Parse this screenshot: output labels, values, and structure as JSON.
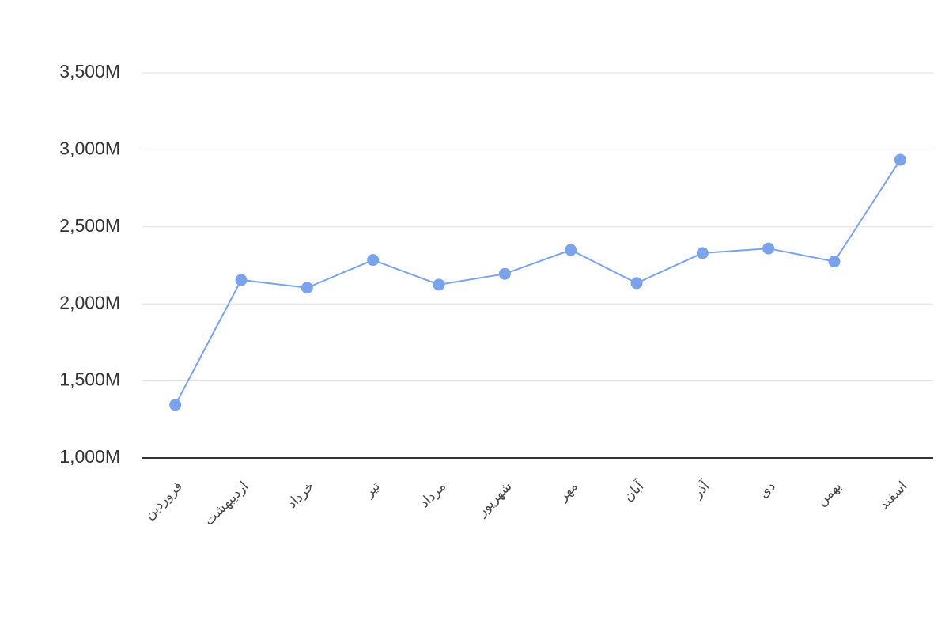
{
  "chart_data": {
    "type": "line",
    "categories": [
      "فروردین",
      "اردیبهشت",
      "خرداد",
      "تیر",
      "مرداد",
      "شهریور",
      "مهر",
      "آبان",
      "آذر",
      "دی",
      "بهمن",
      "اسفند"
    ],
    "series": [
      {
        "color": "#7ba3eb",
        "values": [
          1345,
          2155,
          2105,
          2285,
          2125,
          2195,
          2350,
          2135,
          2330,
          2360,
          2275,
          2935
        ]
      }
    ],
    "ylim": [
      1000,
      3500
    ],
    "yticks": [
      {
        "value": 1000,
        "label": "1,000M"
      },
      {
        "value": 1500,
        "label": "1,500M"
      },
      {
        "value": 2000,
        "label": "2,000M"
      },
      {
        "value": 2500,
        "label": "2,500M"
      },
      {
        "value": 3000,
        "label": "3,000M"
      },
      {
        "value": 3500,
        "label": "3,500M"
      }
    ],
    "grid": true
  }
}
